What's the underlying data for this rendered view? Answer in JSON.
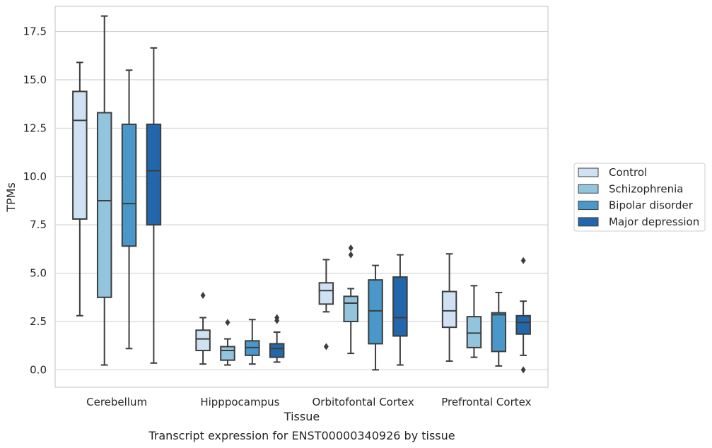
{
  "caption": "Transcript expression for ENST00000340926 by tissue",
  "chart_data": {
    "type": "box",
    "xlabel": "Tissue",
    "ylabel": "TPMs",
    "ylim": [
      -0.9,
      18.8
    ],
    "yticks": [
      "0.0",
      "2.5",
      "5.0",
      "7.5",
      "10.0",
      "12.5",
      "15.0",
      "17.5"
    ],
    "grid": "horizontal",
    "legend_position": "right",
    "categories": [
      "Cerebellum",
      "Hipppocampus",
      "Orbitofontal Cortex",
      "Prefrontal Cortex"
    ],
    "series": [
      {
        "name": "Control",
        "color": "#cfe1f2",
        "boxes": [
          {
            "whisker_low": 2.8,
            "q1": 7.8,
            "median": 12.9,
            "q3": 14.4,
            "whisker_high": 15.9,
            "outliers": []
          },
          {
            "whisker_low": 0.3,
            "q1": 1.0,
            "median": 1.6,
            "q3": 2.05,
            "whisker_high": 2.7,
            "outliers": [
              3.85
            ]
          },
          {
            "whisker_low": 3.0,
            "q1": 3.4,
            "median": 4.1,
            "q3": 4.5,
            "whisker_high": 5.7,
            "outliers": [
              1.2
            ]
          },
          {
            "whisker_low": 0.45,
            "q1": 2.2,
            "median": 3.05,
            "q3": 4.05,
            "whisker_high": 6.0,
            "outliers": []
          }
        ]
      },
      {
        "name": "Schizophrenia",
        "color": "#93c4de",
        "boxes": [
          {
            "whisker_low": 0.25,
            "q1": 3.75,
            "median": 8.75,
            "q3": 13.3,
            "whisker_high": 18.3,
            "outliers": []
          },
          {
            "whisker_low": 0.25,
            "q1": 0.5,
            "median": 1.0,
            "q3": 1.2,
            "whisker_high": 1.6,
            "outliers": [
              2.45
            ]
          },
          {
            "whisker_low": 0.85,
            "q1": 2.5,
            "median": 3.45,
            "q3": 3.8,
            "whisker_high": 4.2,
            "outliers": [
              5.95,
              6.3
            ]
          },
          {
            "whisker_low": 0.65,
            "q1": 1.15,
            "median": 1.9,
            "q3": 2.75,
            "whisker_high": 4.35,
            "outliers": []
          }
        ]
      },
      {
        "name": "Bipolar disorder",
        "color": "#4a98c9",
        "boxes": [
          {
            "whisker_low": 1.1,
            "q1": 6.4,
            "median": 8.6,
            "q3": 12.7,
            "whisker_high": 15.5,
            "outliers": []
          },
          {
            "whisker_low": 0.3,
            "q1": 0.75,
            "median": 1.15,
            "q3": 1.5,
            "whisker_high": 2.6,
            "outliers": []
          },
          {
            "whisker_low": 0.0,
            "q1": 1.35,
            "median": 3.05,
            "q3": 4.65,
            "whisker_high": 5.4,
            "outliers": []
          },
          {
            "whisker_low": 0.2,
            "q1": 0.95,
            "median": 2.85,
            "q3": 2.95,
            "whisker_high": 4.0,
            "outliers": []
          }
        ]
      },
      {
        "name": "Major depression",
        "color": "#2266ac",
        "boxes": [
          {
            "whisker_low": 0.35,
            "q1": 7.5,
            "median": 10.3,
            "q3": 12.7,
            "whisker_high": 16.65,
            "outliers": []
          },
          {
            "whisker_low": 0.4,
            "q1": 0.65,
            "median": 1.1,
            "q3": 1.35,
            "whisker_high": 1.95,
            "outliers": [
              2.55,
              2.7
            ]
          },
          {
            "whisker_low": 0.25,
            "q1": 1.75,
            "median": 2.7,
            "q3": 4.8,
            "whisker_high": 5.95,
            "outliers": []
          },
          {
            "whisker_low": 0.75,
            "q1": 1.85,
            "median": 2.45,
            "q3": 2.8,
            "whisker_high": 3.55,
            "outliers": [
              5.65,
              0.0
            ]
          }
        ]
      }
    ]
  }
}
